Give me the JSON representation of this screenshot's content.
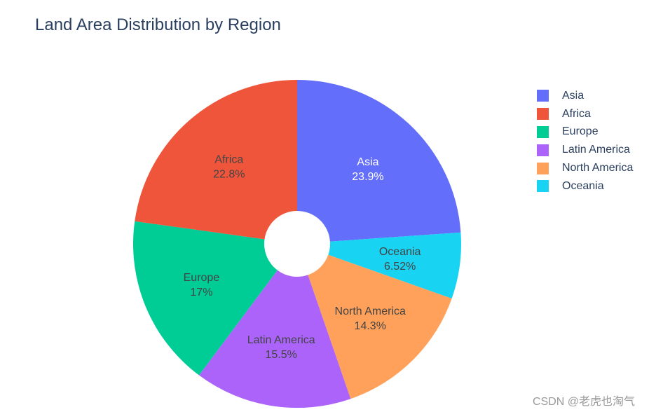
{
  "chart_data": {
    "type": "pie",
    "title": "Land Area Distribution by Region",
    "hole": true,
    "legend_position": "right",
    "slices": [
      {
        "label": "Asia",
        "percent_label": "23.9%",
        "value": 23.9,
        "color": "#636efa",
        "text_color": "#ffffff"
      },
      {
        "label": "Oceania",
        "percent_label": "6.52%",
        "value": 6.52,
        "color": "#19d3f3",
        "text_color": "#444444"
      },
      {
        "label": "North America",
        "percent_label": "14.3%",
        "value": 14.3,
        "color": "#ffa15a",
        "text_color": "#444444"
      },
      {
        "label": "Latin America",
        "percent_label": "15.5%",
        "value": 15.5,
        "color": "#ab63fa",
        "text_color": "#444444"
      },
      {
        "label": "Europe",
        "percent_label": "17%",
        "value": 17.0,
        "color": "#00cc96",
        "text_color": "#444444"
      },
      {
        "label": "Africa",
        "percent_label": "22.8%",
        "value": 22.8,
        "color": "#ef553b",
        "text_color": "#444444"
      }
    ],
    "legend": [
      {
        "label": "Asia",
        "color": "#636efa"
      },
      {
        "label": "Africa",
        "color": "#ef553b"
      },
      {
        "label": "Europe",
        "color": "#00cc96"
      },
      {
        "label": "Latin America",
        "color": "#ab63fa"
      },
      {
        "label": "North America",
        "color": "#ffa15a"
      },
      {
        "label": "Oceania",
        "color": "#19d3f3"
      }
    ]
  },
  "watermark": "CSDN @老虎也淘气"
}
